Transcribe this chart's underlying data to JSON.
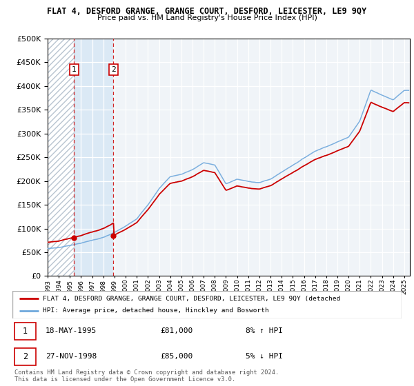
{
  "title": "FLAT 4, DESFORD GRANGE, GRANGE COURT, DESFORD, LEICESTER, LE9 9QY",
  "subtitle": "Price paid vs. HM Land Registry's House Price Index (HPI)",
  "legend_line1": "FLAT 4, DESFORD GRANGE, GRANGE COURT, DESFORD, LEICESTER, LE9 9QY (detached",
  "legend_line2": "HPI: Average price, detached house, Hinckley and Bosworth",
  "table_rows": [
    {
      "num": "1",
      "date": "18-MAY-1995",
      "price": "£81,000",
      "hpi": "8% ↑ HPI"
    },
    {
      "num": "2",
      "date": "27-NOV-1998",
      "price": "£85,000",
      "hpi": "5% ↓ HPI"
    }
  ],
  "footer": "Contains HM Land Registry data © Crown copyright and database right 2024.\nThis data is licensed under the Open Government Licence v3.0.",
  "sale1_year": 1995.38,
  "sale1_price": 81000,
  "sale2_year": 1998.91,
  "sale2_price": 85000,
  "hpi_color": "#6fa8dc",
  "price_color": "#cc0000",
  "dashed_color": "#cc0000",
  "marker_color": "#cc0000",
  "annotation_box_color": "#cc0000",
  "background_plot": "#f0f4f8",
  "ylim": [
    0,
    500000
  ],
  "yticks": [
    0,
    50000,
    100000,
    150000,
    200000,
    250000,
    300000,
    350000,
    400000,
    450000,
    500000
  ],
  "xmin": 1993,
  "xmax": 2025.5,
  "hpi_base_values": {
    "1993": 58000,
    "1994": 60000,
    "1995": 65000,
    "1996": 70000,
    "1997": 76000,
    "1998": 82000,
    "1999": 92000,
    "2000": 105000,
    "2001": 120000,
    "2002": 150000,
    "2003": 185000,
    "2004": 210000,
    "2005": 215000,
    "2006": 225000,
    "2007": 240000,
    "2008": 235000,
    "2009": 195000,
    "2010": 205000,
    "2011": 200000,
    "2012": 198000,
    "2013": 205000,
    "2014": 220000,
    "2015": 235000,
    "2016": 250000,
    "2017": 265000,
    "2018": 275000,
    "2019": 285000,
    "2020": 295000,
    "2021": 330000,
    "2022": 395000,
    "2023": 385000,
    "2024": 375000,
    "2025": 395000
  }
}
